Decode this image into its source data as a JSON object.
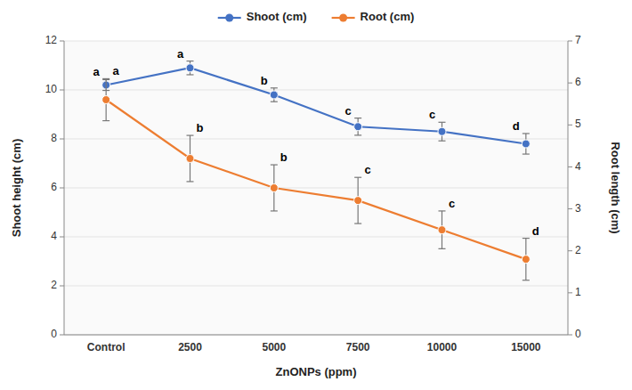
{
  "chart_data": {
    "type": "line",
    "categories": [
      "Control",
      "2500",
      "5000",
      "7500",
      "10000",
      "15000"
    ],
    "xlabel": "ZnONPs (ppm)",
    "ylabel": "Shoot height (cm)",
    "y2label": "Root length (cm)",
    "series": [
      {
        "name": "Shoot (cm)",
        "color": "#4472C4",
        "marker": "circle",
        "values": [
          10.2,
          10.9,
          9.8,
          8.5,
          8.3,
          7.8
        ],
        "errors": [
          0.22,
          0.28,
          0.28,
          0.35,
          0.38,
          0.42
        ],
        "annotations": [
          "a",
          "a",
          "b",
          "c",
          "c",
          "d"
        ]
      },
      {
        "name": "Root (cm)",
        "color": "#ED7D31",
        "marker": "circle",
        "axis": "y2",
        "values": [
          5.6,
          4.2,
          3.5,
          3.2,
          2.5,
          1.8
        ],
        "errors": [
          0.5,
          0.55,
          0.55,
          0.55,
          0.45,
          0.5
        ],
        "annotations": [
          "a",
          "b",
          "b",
          "c",
          "c",
          "d"
        ]
      }
    ],
    "ylim": [
      0,
      12
    ],
    "yticks": [
      0,
      2,
      4,
      6,
      8,
      10,
      12
    ],
    "y2lim": [
      0,
      7
    ],
    "y2ticks": [
      0,
      1,
      2,
      3,
      4,
      5,
      6,
      7
    ],
    "grid": true,
    "legend": "top"
  }
}
